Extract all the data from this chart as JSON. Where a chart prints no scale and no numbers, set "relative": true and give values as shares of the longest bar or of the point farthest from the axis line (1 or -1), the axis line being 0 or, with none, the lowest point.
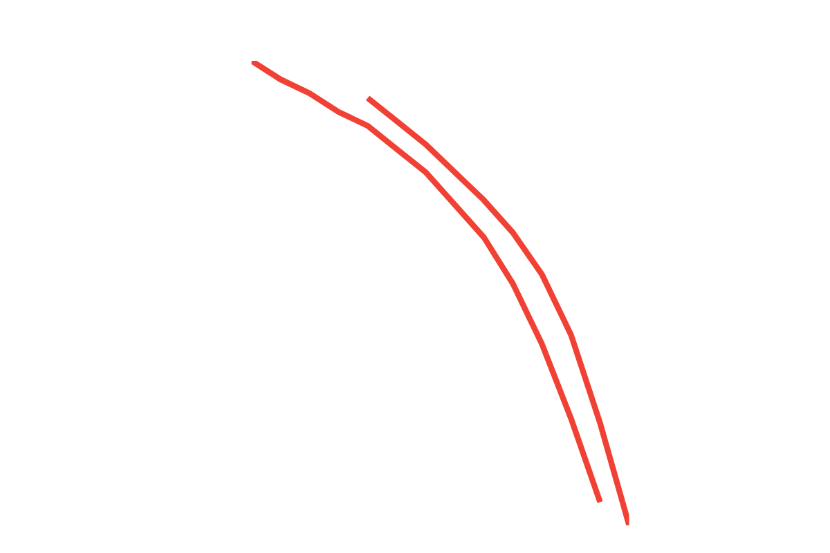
{
  "chart_data": {
    "type": "line",
    "relative": true,
    "line_style": "solid",
    "categories": [
      null,
      null,
      null,
      null,
      null,
      null,
      null,
      null,
      null,
      null,
      null,
      null,
      null,
      null
    ],
    "series": [
      {
        "color": "#f04134",
        "values": [
          1,
          0.96,
          0.93,
          0.89,
          0.86,
          0.81,
          0.76,
          0.69,
          0.62,
          0.52,
          0.39,
          0.23,
          0.05,
          null
        ]
      },
      {
        "color": "#f04134",
        "values": [
          null,
          null,
          null,
          null,
          0.92,
          0.87,
          0.82,
          0.76,
          0.7,
          0.63,
          0.54,
          0.41,
          0.22,
          0
        ]
      }
    ]
  }
}
